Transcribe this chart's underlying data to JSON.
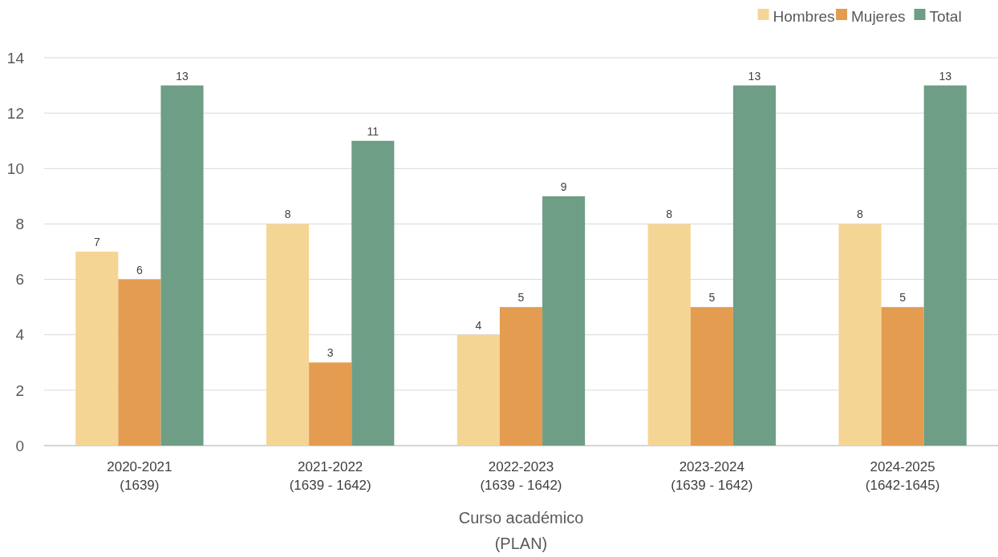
{
  "chart_data": {
    "type": "bar",
    "xlabel": "Curso académico\n(PLAN)",
    "categories": [
      "2020-2021\n(1639)",
      "2021-2022\n(1639 - 1642)",
      "2022-2023\n(1639 - 1642)",
      "2023-2024\n(1639 - 1642)",
      "2024-2025\n(1642-1645)"
    ],
    "series": [
      {
        "name": "Hombres",
        "color": "#f5d594",
        "values": [
          7,
          8,
          4,
          8,
          8
        ]
      },
      {
        "name": "Mujeres",
        "color": "#e39c50",
        "values": [
          6,
          3,
          5,
          5,
          5
        ]
      },
      {
        "name": "Total",
        "color": "#6e9e86",
        "values": [
          13,
          11,
          9,
          13,
          13
        ]
      }
    ],
    "ylim": [
      0,
      14
    ],
    "yticks": [
      0,
      2,
      4,
      6,
      8,
      10,
      12,
      14
    ],
    "grid": "y",
    "legend": "top right",
    "data_labels": true
  }
}
